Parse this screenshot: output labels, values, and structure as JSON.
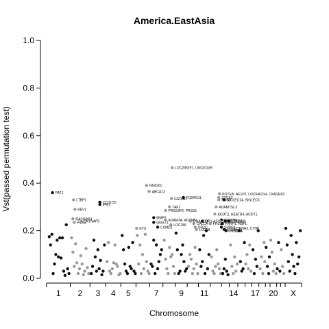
{
  "chart_data": {
    "type": "scatter",
    "title": "America.EastAsia",
    "xlabel": "Chromosome",
    "ylabel": "Vst(passed permutation test)",
    "ylim": [
      0,
      1
    ],
    "yticks": [
      "0.0",
      "0.2",
      "0.4",
      "0.6",
      "0.8",
      "1.0"
    ],
    "x_tick_labels": [
      "1",
      "2",
      "3",
      "4",
      "5",
      "7",
      "9",
      "11",
      "14",
      "17",
      "20",
      "X"
    ],
    "grid": false,
    "legend": "none",
    "colors": {
      "odd_chromosome": "#111111",
      "even_chromosome": "#999999"
    },
    "chromosomes": [
      {
        "chr": "1",
        "start": 0,
        "end": 36,
        "tone": "odd"
      },
      {
        "chr": "2",
        "start": 36,
        "end": 66,
        "tone": "even"
      },
      {
        "chr": "3",
        "start": 66,
        "end": 90,
        "tone": "odd"
      },
      {
        "chr": "4",
        "start": 90,
        "end": 113,
        "tone": "even"
      },
      {
        "chr": "5",
        "start": 113,
        "end": 136,
        "tone": "odd"
      },
      {
        "chr": "6",
        "start": 136,
        "end": 157,
        "tone": "even"
      },
      {
        "chr": "7",
        "start": 157,
        "end": 177,
        "tone": "odd"
      },
      {
        "chr": "8",
        "start": 177,
        "end": 196,
        "tone": "even"
      },
      {
        "chr": "9",
        "start": 196,
        "end": 214,
        "tone": "odd"
      },
      {
        "chr": "10",
        "start": 214,
        "end": 231,
        "tone": "even"
      },
      {
        "chr": "11",
        "start": 231,
        "end": 249,
        "tone": "odd"
      },
      {
        "chr": "12",
        "start": 249,
        "end": 266,
        "tone": "even"
      },
      {
        "chr": "13",
        "start": 266,
        "end": 278,
        "tone": "odd"
      },
      {
        "chr": "14",
        "start": 278,
        "end": 291,
        "tone": "even"
      },
      {
        "chr": "15",
        "start": 291,
        "end": 302,
        "tone": "odd"
      },
      {
        "chr": "16",
        "start": 302,
        "end": 312,
        "tone": "even"
      },
      {
        "chr": "17",
        "start": 312,
        "end": 323,
        "tone": "odd"
      },
      {
        "chr": "18",
        "start": 323,
        "end": 333,
        "tone": "even"
      },
      {
        "chr": "19",
        "start": 333,
        "end": 340,
        "tone": "odd"
      },
      {
        "chr": "20",
        "start": 340,
        "end": 350,
        "tone": "even"
      },
      {
        "chr": "21",
        "start": 350,
        "end": 356,
        "tone": "odd"
      },
      {
        "chr": "22",
        "start": 356,
        "end": 363,
        "tone": "even"
      },
      {
        "chr": "X",
        "start": 363,
        "end": 388,
        "tone": "odd"
      }
    ],
    "points": [
      [
        4,
        0.175
      ],
      [
        6,
        0.14
      ],
      [
        8,
        0.185
      ],
      [
        10,
        0.02
      ],
      [
        12,
        0.06
      ],
      [
        14,
        0.1
      ],
      [
        16,
        0.16
      ],
      [
        18,
        0.09
      ],
      [
        20,
        0.17
      ],
      [
        22,
        0.085
      ],
      [
        24,
        0.17
      ],
      [
        26,
        0.03
      ],
      [
        28,
        0.012
      ],
      [
        30,
        0.225
      ],
      [
        32,
        0.04
      ],
      [
        34,
        0.02
      ],
      [
        38,
        0.17
      ],
      [
        40,
        0.11
      ],
      [
        42,
        0.05
      ],
      [
        44,
        0.145
      ],
      [
        46,
        0.065
      ],
      [
        48,
        0.02
      ],
      [
        50,
        0.04
      ],
      [
        52,
        0.095
      ],
      [
        54,
        0.06
      ],
      [
        56,
        0.015
      ],
      [
        58,
        0.03
      ],
      [
        60,
        0.125
      ],
      [
        62,
        0.045
      ],
      [
        64,
        0.02
      ],
      [
        68,
        0.02
      ],
      [
        70,
        0.05
      ],
      [
        72,
        0.16
      ],
      [
        74,
        0.09
      ],
      [
        76,
        0.03
      ],
      [
        78,
        0.12
      ],
      [
        80,
        0.04
      ],
      [
        82,
        0.075
      ],
      [
        84,
        0.015
      ],
      [
        86,
        0.03
      ],
      [
        88,
        0.14
      ],
      [
        92,
        0.07
      ],
      [
        94,
        0.15
      ],
      [
        96,
        0.03
      ],
      [
        98,
        0.02
      ],
      [
        100,
        0.04
      ],
      [
        102,
        0.065
      ],
      [
        104,
        0.14
      ],
      [
        106,
        0.06
      ],
      [
        108,
        0.05
      ],
      [
        110,
        0.015
      ],
      [
        112,
        0.02
      ],
      [
        115,
        0.18
      ],
      [
        117,
        0.12
      ],
      [
        119,
        0.06
      ],
      [
        121,
        0.03
      ],
      [
        123,
        0.02
      ],
      [
        125,
        0.13
      ],
      [
        127,
        0.05
      ],
      [
        129,
        0.04
      ],
      [
        131,
        0.15
      ],
      [
        133,
        0.03
      ],
      [
        135,
        0.02
      ],
      [
        138,
        0.18
      ],
      [
        140,
        0.06
      ],
      [
        142,
        0.14
      ],
      [
        144,
        0.02
      ],
      [
        146,
        0.1
      ],
      [
        148,
        0.04
      ],
      [
        150,
        0.185
      ],
      [
        152,
        0.07
      ],
      [
        154,
        0.03
      ],
      [
        156,
        0.02
      ],
      [
        159,
        0.06
      ],
      [
        161,
        0.05
      ],
      [
        163,
        0.16
      ],
      [
        165,
        0.02
      ],
      [
        167,
        0.14
      ],
      [
        169,
        0.04
      ],
      [
        171,
        0.07
      ],
      [
        173,
        0.1
      ],
      [
        175,
        0.12
      ],
      [
        179,
        0.16
      ],
      [
        181,
        0.08
      ],
      [
        183,
        0.04
      ],
      [
        185,
        0.02
      ],
      [
        187,
        0.13
      ],
      [
        189,
        0.09
      ],
      [
        191,
        0.1
      ],
      [
        193,
        0.05
      ],
      [
        195,
        0.02
      ],
      [
        197,
        0.19
      ],
      [
        199,
        0.12
      ],
      [
        201,
        0.02
      ],
      [
        203,
        0.03
      ],
      [
        205,
        0.1
      ],
      [
        207,
        0.14
      ],
      [
        209,
        0.07
      ],
      [
        211,
        0.03
      ],
      [
        213,
        0.04
      ],
      [
        216,
        0.05
      ],
      [
        218,
        0.1
      ],
      [
        220,
        0.08
      ],
      [
        222,
        0.02
      ],
      [
        224,
        0.04
      ],
      [
        226,
        0.13
      ],
      [
        228,
        0.06
      ],
      [
        230,
        0.02
      ],
      [
        233,
        0.12
      ],
      [
        235,
        0.05
      ],
      [
        237,
        0.07
      ],
      [
        239,
        0.18
      ],
      [
        241,
        0.02
      ],
      [
        243,
        0.2
      ],
      [
        245,
        0.04
      ],
      [
        247,
        0.1
      ],
      [
        251,
        0.09
      ],
      [
        253,
        0.03
      ],
      [
        255,
        0.02
      ],
      [
        257,
        0.05
      ],
      [
        259,
        0.12
      ],
      [
        261,
        0.06
      ],
      [
        263,
        0.04
      ],
      [
        265,
        0.02
      ],
      [
        268,
        0.02
      ],
      [
        270,
        0.04
      ],
      [
        272,
        0.08
      ],
      [
        274,
        0.03
      ],
      [
        276,
        0.015
      ],
      [
        280,
        0.14
      ],
      [
        282,
        0.05
      ],
      [
        284,
        0.02
      ],
      [
        286,
        0.09
      ],
      [
        288,
        0.03
      ],
      [
        290,
        0.06
      ],
      [
        293,
        0.2
      ],
      [
        295,
        0.07
      ],
      [
        297,
        0.03
      ],
      [
        299,
        0.04
      ],
      [
        301,
        0.15
      ],
      [
        303,
        0.06
      ],
      [
        305,
        0.1
      ],
      [
        307,
        0.04
      ],
      [
        309,
        0.14
      ],
      [
        311,
        0.03
      ],
      [
        314,
        0.12
      ],
      [
        316,
        0.02
      ],
      [
        318,
        0.08
      ],
      [
        320,
        0.05
      ],
      [
        322,
        0.2
      ],
      [
        325,
        0.04
      ],
      [
        327,
        0.09
      ],
      [
        329,
        0.02
      ],
      [
        331,
        0.15
      ],
      [
        332,
        0.07
      ],
      [
        334,
        0.13
      ],
      [
        336,
        0.05
      ],
      [
        338,
        0.02
      ],
      [
        339,
        0.09
      ],
      [
        341,
        0.16
      ],
      [
        343,
        0.11
      ],
      [
        345,
        0.03
      ],
      [
        347,
        0.06
      ],
      [
        349,
        0.02
      ],
      [
        351,
        0.04
      ],
      [
        353,
        0.15
      ],
      [
        355,
        0.03
      ],
      [
        357,
        0.12
      ],
      [
        359,
        0.05
      ],
      [
        361,
        0.02
      ],
      [
        364,
        0.21
      ],
      [
        366,
        0.14
      ],
      [
        368,
        0.07
      ],
      [
        370,
        0.03
      ],
      [
        372,
        0.18
      ],
      [
        374,
        0.1
      ],
      [
        376,
        0.05
      ],
      [
        378,
        0.02
      ],
      [
        380,
        0.15
      ],
      [
        382,
        0.06
      ],
      [
        384,
        0.09
      ],
      [
        386,
        0.2
      ]
    ],
    "labeled_points": [
      {
        "x": 9,
        "y": 0.36,
        "label": "PATJ"
      },
      {
        "x": 41,
        "y": 0.33,
        "label": "LTBP1"
      },
      {
        "x": 43,
        "y": 0.29,
        "label": "REV1"
      },
      {
        "x": 40,
        "y": 0.25,
        "label": "RASGRP3"
      },
      {
        "x": 42,
        "y": 0.235,
        "label": "FMN2"
      },
      {
        "x": 52,
        "y": 0.24,
        "label": "CNTNAP5"
      },
      {
        "x": 81,
        "y": 0.32,
        "label": "CCDC50"
      },
      {
        "x": 81,
        "y": 0.31,
        "label": "IPR3"
      },
      {
        "x": 137,
        "y": 0.21,
        "label": "EYS"
      },
      {
        "x": 152,
        "y": 0.39,
        "label": "FAM20C"
      },
      {
        "x": 156,
        "y": 0.365,
        "label": "ABCA13"
      },
      {
        "x": 163,
        "y": 0.255,
        "label": "MMP2"
      },
      {
        "x": 163,
        "y": 0.235,
        "label": "GNGT1"
      },
      {
        "x": 169,
        "y": 0.215,
        "label": "CSMD1"
      },
      {
        "x": 187,
        "y": 0.3,
        "label": "TAF2"
      },
      {
        "x": 181,
        "y": 0.285,
        "label": "PRSS3P2, PRSS1"
      },
      {
        "x": 181,
        "y": 0.245,
        "label": "ADAM3A, ADAM5"
      },
      {
        "x": 189,
        "y": 0.225,
        "label": "LOC286"
      },
      {
        "x": 191,
        "y": 0.465,
        "label": "LOC286297, LINC01189"
      },
      {
        "x": 190,
        "y": 0.335,
        "label": "GSDMD"
      },
      {
        "x": 208,
        "y": 0.34,
        "label": "TCERG1L"
      },
      {
        "x": 219,
        "y": 0.24,
        "label": "DNAJC24"
      },
      {
        "x": 224,
        "y": 0.23,
        "label": "CALCA"
      },
      {
        "x": 226,
        "y": 0.215,
        "label": "OR2C"
      },
      {
        "x": 228,
        "y": 0.205,
        "label": "LOC99"
      },
      {
        "x": 237,
        "y": 0.24,
        "label": "OR1-AS1"
      },
      {
        "x": 249,
        "y": 0.23,
        "label": "FHS2N"
      },
      {
        "x": 263,
        "y": 0.355,
        "label": "POTEB, NF1P2, LOC646214, CXADRP2"
      },
      {
        "x": 262,
        "y": 0.34,
        "label": "STOX2"
      },
      {
        "x": 262,
        "y": 0.33,
        "label": "NOX5"
      },
      {
        "x": 270,
        "y": 0.33,
        "label": "SIGLEC14, SIGLEC5"
      },
      {
        "x": 258,
        "y": 0.3,
        "label": "ADAMTSL3"
      },
      {
        "x": 256,
        "y": 0.27,
        "label": "ACOT2, HEATR4, ACOT1"
      },
      {
        "x": 266,
        "y": 0.245,
        "label": "BRI3BP"
      },
      {
        "x": 264,
        "y": 0.24,
        "label": "EPP1"
      },
      {
        "x": 272,
        "y": 0.24,
        "label": "CHEK2"
      },
      {
        "x": 277,
        "y": 0.24,
        "label": "SEC14L6"
      },
      {
        "x": 283,
        "y": 0.24,
        "label": "SEC1"
      },
      {
        "x": 267,
        "y": 0.23,
        "label": "PRRP1, RBPL"
      },
      {
        "x": 266,
        "y": 0.215,
        "label": "SRPR1"
      },
      {
        "x": 270,
        "y": 0.205,
        "label": "AGF4"
      },
      {
        "x": 273,
        "y": 0.2,
        "label": "MYO18A"
      },
      {
        "x": 278,
        "y": 0.2,
        "label": "GRIK1"
      },
      {
        "x": 281,
        "y": 0.21,
        "label": "CHRNA3, CTHB"
      }
    ]
  }
}
